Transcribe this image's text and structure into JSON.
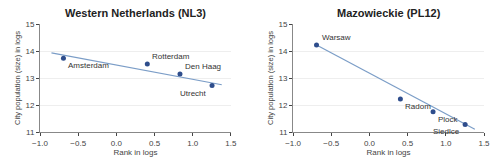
{
  "chart_data": [
    {
      "type": "scatter",
      "title": "Western Netherlands (NL3)",
      "xlabel": "Rank in logs",
      "ylabel": "City population (size) in logs",
      "xlim": [
        -1,
        1.5
      ],
      "xticks": [
        {
          "value": -1,
          "label": "−1.0"
        },
        {
          "value": -0.5,
          "label": "−0.5"
        },
        {
          "value": 0,
          "label": "0.0"
        },
        0.5,
        {
          "value": 1,
          "label": "1.0"
        },
        1.5
      ],
      "ylim": [
        11,
        15
      ],
      "yticks": [
        11,
        12,
        13,
        14,
        15
      ],
      "grid": "y",
      "series": [
        {
          "type": "line",
          "color": "#7B9DC7",
          "x": [
            -0.85,
            1.38
          ],
          "values": [
            13.93,
            12.75
          ]
        },
        {
          "type": "scatter",
          "color": "#2E4D8C",
          "x": [
            -0.693,
            0.405,
            0.833,
            1.253
          ],
          "values": [
            13.73,
            13.52,
            13.15,
            12.72
          ],
          "annotations": [
            "Amsterdam",
            "Rotterdam",
            "Den Haag",
            "Utrecht"
          ]
        }
      ]
    },
    {
      "type": "scatter",
      "title": "Mazowieckie (PL12)",
      "xlabel": "Rank in logs",
      "ylabel": "City population (size) in logs",
      "xlim": [
        -1,
        1.5
      ],
      "xticks": [
        {
          "value": -1,
          "label": "−1.0"
        },
        {
          "value": -0.5,
          "label": "−0.5"
        },
        {
          "value": 0,
          "label": "0.0"
        },
        0.5,
        {
          "value": 1,
          "label": "1.0"
        },
        1.5
      ],
      "ylim": [
        11,
        15
      ],
      "yticks": [
        11,
        12,
        13,
        14,
        15
      ],
      "grid": "y",
      "series": [
        {
          "type": "line",
          "color": "#7B9DC7",
          "x": [
            -0.693,
            1.38
          ],
          "values": [
            14.22,
            11.1
          ]
        },
        {
          "type": "scatter",
          "color": "#2E4D8C",
          "x": [
            -0.693,
            0.405,
            0.833,
            1.253
          ],
          "values": [
            14.22,
            12.22,
            11.75,
            11.28
          ],
          "annotations": [
            "Warsaw",
            "Radom",
            "Plock",
            "Siedlce"
          ]
        }
      ]
    }
  ]
}
